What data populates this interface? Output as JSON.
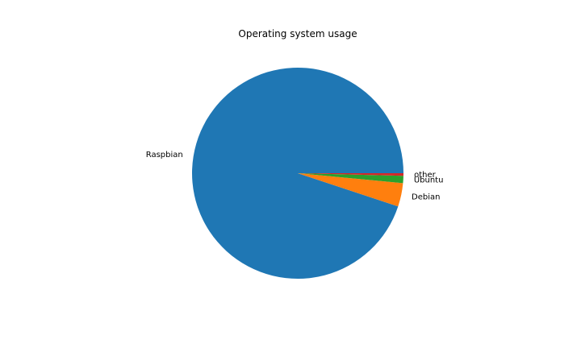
{
  "chart_data": {
    "type": "pie",
    "title": "Operating system usage",
    "start_angle_deg": 0,
    "direction": "counterclockwise",
    "slices": [
      {
        "label": "Raspbian",
        "value": 94.9,
        "color": "#1f77b4"
      },
      {
        "label": "Debian",
        "value": 3.6,
        "color": "#ff7f0e"
      },
      {
        "label": "Ubuntu",
        "value": 1.1,
        "color": "#2ca02c"
      },
      {
        "label": "other",
        "value": 0.4,
        "color": "#d62728"
      }
    ]
  }
}
